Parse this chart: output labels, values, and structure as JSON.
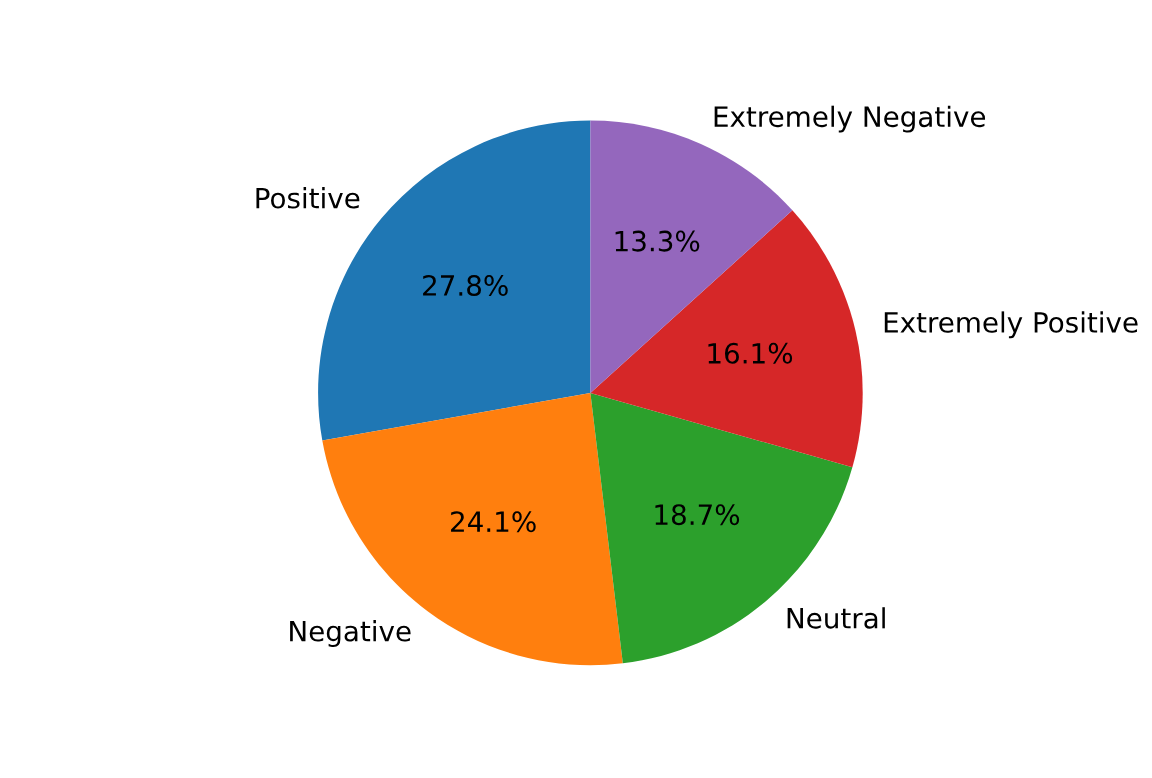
{
  "chart_data": {
    "type": "pie",
    "categories": [
      "Positive",
      "Negative",
      "Neutral",
      "Extremely Positive",
      "Extremely Negative"
    ],
    "values": [
      27.8,
      24.1,
      18.7,
      16.1,
      13.3
    ],
    "value_labels": [
      "27.8%",
      "24.1%",
      "18.7%",
      "16.1%",
      "13.3%"
    ],
    "colors": [
      "#1f77b4",
      "#ff7f0e",
      "#2ca02c",
      "#d62728",
      "#9467bd"
    ]
  }
}
